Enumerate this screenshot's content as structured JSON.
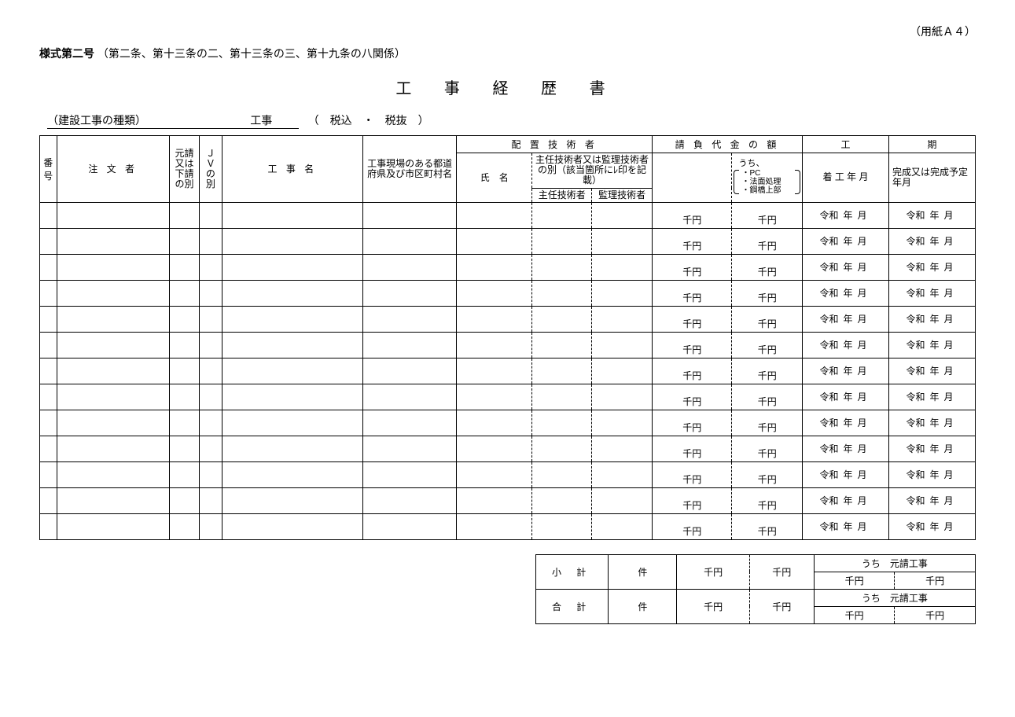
{
  "paper_size": "（用紙Ａ４）",
  "form_header_bold": "様式第二号",
  "form_header_rest": "（第二条、第十三条の二、第十三条の三、第十九条の八関係）",
  "title": "工 事 経 歴 書",
  "construction_type_label": "（建設工事の種類）",
  "construction_suffix": "工事",
  "tax_options": "（　税込　・　税抜　）",
  "headers": {
    "no": "番号",
    "client": "注 文 者",
    "prime_sub": "元請又は下請の別",
    "jv": "ＪＶの別",
    "work_name": "工 事 名",
    "location": "工事現場のある都道府県及び市区町村名",
    "engineer_group": "配 置 技 術 者",
    "fullname": "氏　名",
    "engineer_type": "主任技術者又は監理技術者の別（該当箇所にﾚ印を記載）",
    "chief": "主任技術者",
    "supervisor": "監理技術者",
    "amount_group": "請 負 代 金 の 額",
    "amount_note_top": "うち、",
    "amount_note_1": "・PC",
    "amount_note_2": "・法面処理",
    "amount_note_3": "・鋼橋上部",
    "period_group": "工",
    "period_group2": "期",
    "start_date": "着 工 年 月",
    "end_date": "完成又は完成予定年月"
  },
  "unit_sen_yen": "千円",
  "era": "令和",
  "year_label": "年",
  "month_label": "月",
  "row_count": 13,
  "summary": {
    "subtotal_label": "小 計",
    "total_label": "合 計",
    "count_unit": "件",
    "prime_sub_label": "うち　元請工事"
  }
}
